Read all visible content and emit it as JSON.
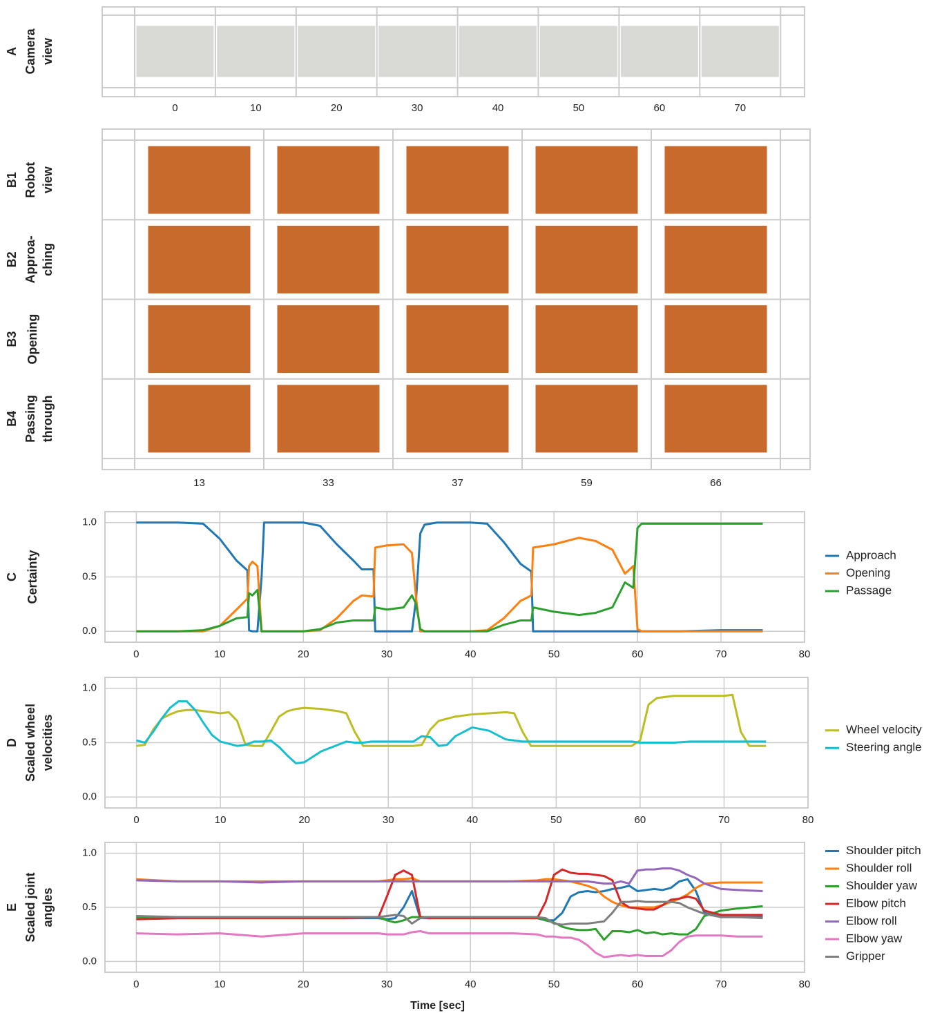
{
  "chart_data": [
    {
      "type": "image_grid",
      "rows": [
        {
          "panel": "A",
          "title": [
            "Camera",
            "view"
          ]
        }
      ],
      "x": [
        0,
        10,
        20,
        30,
        40,
        50,
        60,
        70
      ]
    },
    {
      "type": "image_grid",
      "rows": [
        {
          "panel": "B1",
          "title": [
            "Robot",
            "view"
          ]
        },
        {
          "panel": "B2",
          "title": [
            "Approa-",
            "ching"
          ]
        },
        {
          "panel": "B3",
          "title": [
            "Opening"
          ]
        },
        {
          "panel": "B4",
          "title": [
            "Passing",
            "through"
          ]
        }
      ],
      "x": [
        13,
        33,
        37,
        59,
        66
      ]
    },
    {
      "type": "line",
      "panel": "C",
      "ylabel": [
        "Certainty"
      ],
      "x": [
        0,
        5,
        8,
        10,
        12,
        13.3,
        13.5,
        13.9,
        14.5,
        15,
        15.3,
        20,
        22,
        24,
        26,
        27,
        28.4,
        28.6,
        30,
        32,
        33,
        33.5,
        34,
        34.5,
        36,
        40,
        42,
        44,
        46,
        47.3,
        47.5,
        50,
        53,
        55,
        57,
        58.5,
        59.5,
        60,
        60.5,
        65,
        70,
        75
      ],
      "series": [
        {
          "name": "Approach",
          "color": "#1f77b4",
          "values": [
            1,
            1,
            0.99,
            0.85,
            0.65,
            0.56,
            0.01,
            0,
            0,
            0.5,
            1,
            1,
            0.97,
            0.8,
            0.65,
            0.57,
            0.57,
            0,
            0,
            0,
            0,
            0.3,
            0.9,
            0.98,
            1,
            1,
            0.99,
            0.82,
            0.62,
            0.55,
            0,
            0,
            0,
            0,
            0,
            0,
            0,
            0,
            0,
            0,
            0.01,
            0.01
          ]
        },
        {
          "name": "Opening",
          "color": "#ff7f0e",
          "values": [
            0,
            0,
            0,
            0.05,
            0.2,
            0.3,
            0.6,
            0.64,
            0.6,
            0,
            0,
            0,
            0.01,
            0.12,
            0.28,
            0.33,
            0.32,
            0.77,
            0.79,
            0.8,
            0.72,
            0.3,
            0,
            0,
            0,
            0,
            0.01,
            0.12,
            0.28,
            0.33,
            0.77,
            0.8,
            0.86,
            0.83,
            0.75,
            0.53,
            0.6,
            0.02,
            0,
            0,
            0,
            0
          ]
        },
        {
          "name": "Passage",
          "color": "#2ca02c",
          "values": [
            0,
            0,
            0.01,
            0.05,
            0.12,
            0.13,
            0.35,
            0.33,
            0.38,
            0,
            0,
            0,
            0.02,
            0.08,
            0.1,
            0.1,
            0.1,
            0.22,
            0.2,
            0.22,
            0.33,
            0.25,
            0.02,
            0,
            0,
            0,
            0,
            0.06,
            0.1,
            0.1,
            0.22,
            0.18,
            0.15,
            0.17,
            0.22,
            0.45,
            0.4,
            0.95,
            0.99,
            0.99,
            0.99,
            0.99
          ]
        }
      ],
      "xlim": [
        -3.75,
        80
      ],
      "ylim": [
        -0.1,
        1.1
      ],
      "xticks": [
        0,
        10,
        20,
        30,
        40,
        50,
        60,
        70,
        80
      ],
      "yticks": [
        {
          "value": 0,
          "label": "0.0"
        },
        {
          "value": 0.5,
          "label": "0.5"
        },
        {
          "value": 1,
          "label": "1.0"
        }
      ],
      "grid": true,
      "legend": "right"
    },
    {
      "type": "line",
      "panel": "D",
      "ylabel": [
        "Scaled wheel",
        "velocities"
      ],
      "x": [
        0,
        1,
        2,
        3,
        4,
        5,
        6,
        7,
        8,
        9,
        10,
        11,
        12,
        13,
        14,
        15,
        16,
        17,
        18,
        19,
        20,
        22,
        24,
        25,
        26,
        27,
        28,
        30,
        33,
        34,
        35,
        36,
        37,
        38,
        40,
        42,
        44,
        45,
        46,
        47,
        50,
        55,
        59,
        60,
        61,
        62,
        64,
        66,
        68,
        70,
        71,
        72,
        73,
        75
      ],
      "series": [
        {
          "name": "Wheel velocity",
          "color": "#bcbd22",
          "values": [
            0.47,
            0.48,
            0.62,
            0.72,
            0.76,
            0.79,
            0.8,
            0.8,
            0.79,
            0.78,
            0.77,
            0.78,
            0.7,
            0.48,
            0.47,
            0.47,
            0.6,
            0.74,
            0.79,
            0.81,
            0.82,
            0.81,
            0.79,
            0.77,
            0.6,
            0.47,
            0.47,
            0.47,
            0.47,
            0.48,
            0.62,
            0.7,
            0.72,
            0.74,
            0.76,
            0.77,
            0.78,
            0.77,
            0.6,
            0.47,
            0.47,
            0.47,
            0.47,
            0.52,
            0.85,
            0.91,
            0.93,
            0.93,
            0.93,
            0.93,
            0.94,
            0.6,
            0.47,
            0.47
          ]
        },
        {
          "name": "Steering angle",
          "color": "#17becf",
          "values": [
            0.52,
            0.5,
            0.6,
            0.72,
            0.82,
            0.88,
            0.88,
            0.8,
            0.68,
            0.57,
            0.51,
            0.49,
            0.47,
            0.48,
            0.51,
            0.51,
            0.52,
            0.46,
            0.38,
            0.31,
            0.32,
            0.42,
            0.48,
            0.51,
            0.5,
            0.5,
            0.51,
            0.51,
            0.51,
            0.56,
            0.55,
            0.47,
            0.48,
            0.56,
            0.64,
            0.61,
            0.53,
            0.52,
            0.51,
            0.51,
            0.51,
            0.51,
            0.51,
            0.5,
            0.5,
            0.5,
            0.5,
            0.51,
            0.51,
            0.51,
            0.51,
            0.51,
            0.51,
            0.51
          ]
        }
      ],
      "xlim": [
        -3.75,
        80
      ],
      "ylim": [
        -0.1,
        1.1
      ],
      "xticks": [
        0,
        10,
        20,
        30,
        40,
        50,
        60,
        70,
        80
      ],
      "yticks": [
        {
          "value": 0,
          "label": "0.0"
        },
        {
          "value": 0.5,
          "label": "0.5"
        },
        {
          "value": 1,
          "label": "1.0"
        }
      ],
      "grid": true,
      "legend": "right"
    },
    {
      "type": "line",
      "panel": "E",
      "ylabel": [
        "Scaled joint",
        "angles"
      ],
      "xlabel": "Time [sec]",
      "x": [
        0,
        5,
        10,
        15,
        20,
        25,
        29,
        30,
        31,
        32,
        33,
        34,
        35,
        40,
        45,
        48,
        49,
        50,
        51,
        52,
        53,
        54,
        55,
        56,
        57,
        58,
        59,
        60,
        61,
        62,
        63,
        64,
        65,
        66,
        67,
        68,
        70,
        72,
        75
      ],
      "series": [
        {
          "name": "Shoulder pitch",
          "color": "#1f77b4",
          "values": [
            0.41,
            0.4,
            0.4,
            0.4,
            0.4,
            0.4,
            0.4,
            0.39,
            0.4,
            0.5,
            0.65,
            0.4,
            0.4,
            0.4,
            0.4,
            0.4,
            0.38,
            0.38,
            0.45,
            0.6,
            0.64,
            0.65,
            0.64,
            0.65,
            0.67,
            0.68,
            0.7,
            0.65,
            0.66,
            0.67,
            0.66,
            0.68,
            0.74,
            0.76,
            0.65,
            0.45,
            0.41,
            0.41,
            0.41
          ]
        },
        {
          "name": "Shoulder roll",
          "color": "#ff7f0e",
          "values": [
            0.76,
            0.74,
            0.74,
            0.74,
            0.74,
            0.74,
            0.74,
            0.75,
            0.76,
            0.76,
            0.77,
            0.74,
            0.74,
            0.74,
            0.74,
            0.75,
            0.76,
            0.76,
            0.75,
            0.74,
            0.72,
            0.7,
            0.67,
            0.6,
            0.55,
            0.52,
            0.5,
            0.5,
            0.5,
            0.5,
            0.52,
            0.55,
            0.58,
            0.62,
            0.68,
            0.72,
            0.73,
            0.73,
            0.73
          ]
        },
        {
          "name": "Shoulder yaw",
          "color": "#2ca02c",
          "values": [
            0.41,
            0.41,
            0.41,
            0.41,
            0.41,
            0.41,
            0.41,
            0.38,
            0.36,
            0.38,
            0.41,
            0.41,
            0.41,
            0.41,
            0.41,
            0.41,
            0.38,
            0.36,
            0.32,
            0.3,
            0.29,
            0.29,
            0.3,
            0.2,
            0.28,
            0.28,
            0.27,
            0.29,
            0.26,
            0.27,
            0.25,
            0.26,
            0.25,
            0.25,
            0.3,
            0.42,
            0.47,
            0.49,
            0.51
          ]
        },
        {
          "name": "Elbow pitch",
          "color": "#d62728",
          "values": [
            0.39,
            0.4,
            0.4,
            0.4,
            0.4,
            0.4,
            0.41,
            0.6,
            0.8,
            0.84,
            0.8,
            0.41,
            0.4,
            0.4,
            0.4,
            0.4,
            0.55,
            0.8,
            0.85,
            0.82,
            0.81,
            0.81,
            0.8,
            0.79,
            0.75,
            0.55,
            0.5,
            0.49,
            0.48,
            0.48,
            0.52,
            0.57,
            0.58,
            0.6,
            0.58,
            0.47,
            0.43,
            0.43,
            0.43
          ]
        },
        {
          "name": "Elbow roll",
          "color": "#9467bd",
          "values": [
            0.75,
            0.74,
            0.74,
            0.73,
            0.74,
            0.74,
            0.74,
            0.74,
            0.74,
            0.74,
            0.74,
            0.74,
            0.74,
            0.74,
            0.74,
            0.74,
            0.74,
            0.74,
            0.74,
            0.74,
            0.74,
            0.74,
            0.73,
            0.72,
            0.72,
            0.74,
            0.72,
            0.84,
            0.85,
            0.85,
            0.86,
            0.86,
            0.84,
            0.8,
            0.77,
            0.72,
            0.67,
            0.66,
            0.65
          ]
        },
        {
          "name": "Elbow yaw",
          "color": "#e377c2",
          "values": [
            0.26,
            0.25,
            0.26,
            0.23,
            0.26,
            0.26,
            0.26,
            0.25,
            0.25,
            0.25,
            0.27,
            0.28,
            0.26,
            0.26,
            0.26,
            0.25,
            0.23,
            0.23,
            0.22,
            0.22,
            0.2,
            0.15,
            0.08,
            0.04,
            0.05,
            0.06,
            0.05,
            0.06,
            0.05,
            0.05,
            0.05,
            0.1,
            0.18,
            0.23,
            0.24,
            0.24,
            0.24,
            0.23,
            0.23
          ]
        },
        {
          "name": "Gripper",
          "color": "#7f7f7f",
          "values": [
            0.42,
            0.41,
            0.41,
            0.41,
            0.41,
            0.41,
            0.41,
            0.42,
            0.43,
            0.42,
            0.35,
            0.4,
            0.41,
            0.41,
            0.41,
            0.41,
            0.4,
            0.35,
            0.34,
            0.35,
            0.35,
            0.35,
            0.36,
            0.37,
            0.45,
            0.55,
            0.55,
            0.56,
            0.55,
            0.55,
            0.55,
            0.55,
            0.54,
            0.5,
            0.47,
            0.44,
            0.41,
            0.41,
            0.4
          ]
        }
      ],
      "xlim": [
        -3.75,
        80
      ],
      "ylim": [
        -0.1,
        1.1
      ],
      "xticks": [
        0,
        10,
        20,
        30,
        40,
        50,
        60,
        70,
        80
      ],
      "yticks": [
        {
          "value": 0,
          "label": "0.0"
        },
        {
          "value": 0.5,
          "label": "0.5"
        },
        {
          "value": 1,
          "label": "1.0"
        }
      ],
      "grid": true,
      "legend": "right"
    }
  ]
}
